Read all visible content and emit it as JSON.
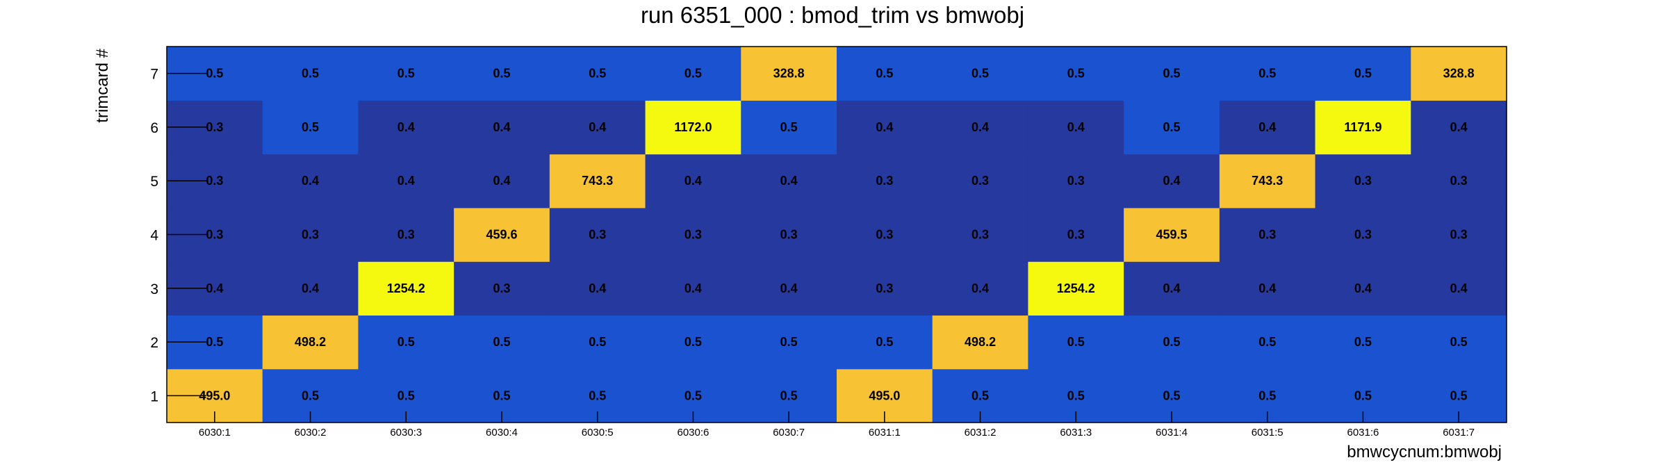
{
  "chart_data": {
    "type": "heatmap",
    "title": "run 6351_000 : bmod_trim vs bmwobj",
    "xlabel": "bmwcycnum:bmwobj",
    "ylabel": "trimcard #",
    "x_categories": [
      "6030:1",
      "6030:2",
      "6030:3",
      "6030:4",
      "6030:5",
      "6030:6",
      "6030:7",
      "6031:1",
      "6031:2",
      "6031:3",
      "6031:4",
      "6031:5",
      "6031:6",
      "6031:7"
    ],
    "y_categories": [
      "1",
      "2",
      "3",
      "4",
      "5",
      "6",
      "7"
    ],
    "values": [
      [
        495.0,
        0.5,
        0.5,
        0.5,
        0.5,
        0.5,
        0.5,
        495.0,
        0.5,
        0.5,
        0.5,
        0.5,
        0.5,
        0.5
      ],
      [
        0.5,
        498.2,
        0.5,
        0.5,
        0.5,
        0.5,
        0.5,
        0.5,
        498.2,
        0.5,
        0.5,
        0.5,
        0.5,
        0.5
      ],
      [
        0.4,
        0.4,
        1254.2,
        0.3,
        0.4,
        0.4,
        0.4,
        0.3,
        0.4,
        1254.2,
        0.4,
        0.4,
        0.4,
        0.4
      ],
      [
        0.3,
        0.3,
        0.3,
        459.6,
        0.3,
        0.3,
        0.3,
        0.3,
        0.3,
        0.3,
        459.5,
        0.3,
        0.3,
        0.3
      ],
      [
        0.3,
        0.4,
        0.4,
        0.4,
        743.3,
        0.4,
        0.4,
        0.3,
        0.3,
        0.3,
        0.4,
        743.3,
        0.3,
        0.3
      ],
      [
        0.3,
        0.5,
        0.4,
        0.4,
        0.4,
        1172.0,
        0.5,
        0.4,
        0.4,
        0.4,
        0.5,
        0.4,
        1171.9,
        0.4
      ],
      [
        0.5,
        0.5,
        0.5,
        0.5,
        0.5,
        0.5,
        328.8,
        0.5,
        0.5,
        0.5,
        0.5,
        0.5,
        0.5,
        328.8
      ]
    ],
    "colors": {
      "low": "#26399e",
      "mid": "#1a52d0",
      "warm": "#f7c234",
      "hot": "#f5f80f"
    }
  }
}
